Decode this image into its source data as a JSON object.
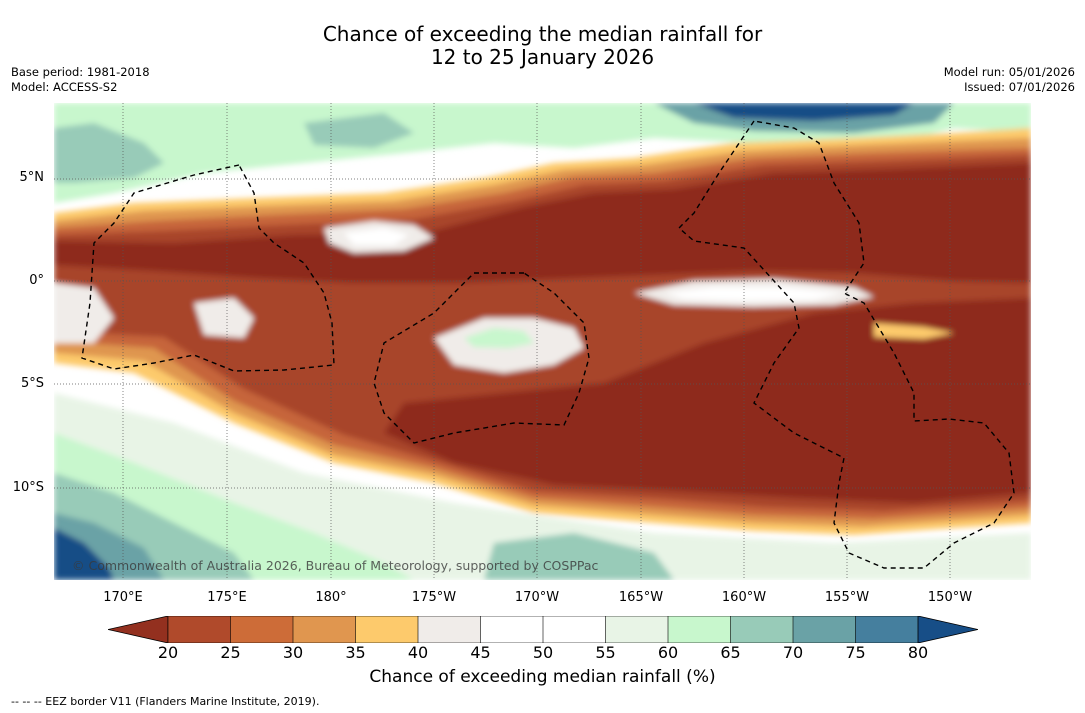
{
  "title": {
    "line1": "Chance of exceeding the median rainfall for",
    "line2": "12 to 25 January 2026"
  },
  "meta_left": {
    "base_period": "Base period: 1981-2018",
    "model": "Model: ACCESS-S2"
  },
  "meta_right": {
    "model_run": "Model run: 05/01/2026",
    "issued": "Issued: 07/01/2026"
  },
  "map": {
    "lat_labels": [
      "5°N",
      "0°",
      "5°S",
      "10°S"
    ],
    "lon_labels": [
      "170°E",
      "175°E",
      "180°",
      "175°W",
      "170°W",
      "165°W",
      "160°W",
      "155°W",
      "150°W"
    ],
    "copyright": "© Commonwealth of Australia 2026, Bureau of Meteorology, supported by COSPPac",
    "colors": {
      "p20": "#8e2c1e",
      "p25": "#a8442a",
      "p30": "#c6653a",
      "p35": "#df9650",
      "p40": "#fdca6c",
      "p45": "#f0ece9",
      "p50": "#ffffff",
      "p55": "#ffffff",
      "p60": "#e8f4e6",
      "p65": "#c8f7cd",
      "p70": "#98cbb8",
      "p75": "#6aa2a6",
      "p80": "#457f9e",
      "max": "#164d86"
    }
  },
  "colorbar": {
    "ticks": [
      "20",
      "25",
      "30",
      "35",
      "40",
      "45",
      "50",
      "55",
      "60",
      "65",
      "70",
      "75",
      "80"
    ],
    "label": "Chance of exceeding median rainfall (%)",
    "colors": [
      "#93301f",
      "#b04a2b",
      "#cd6c38",
      "#e0964f",
      "#fdca6c",
      "#f0ece9",
      "#ffffff",
      "#ffffff",
      "#e8f4e6",
      "#c8f7cd",
      "#98cbb8",
      "#6aa2a6",
      "#457f9e",
      "#174e87"
    ]
  },
  "legend_note": "--  --  -- EEZ border V11 (Flanders Marine Institute, 2019)."
}
